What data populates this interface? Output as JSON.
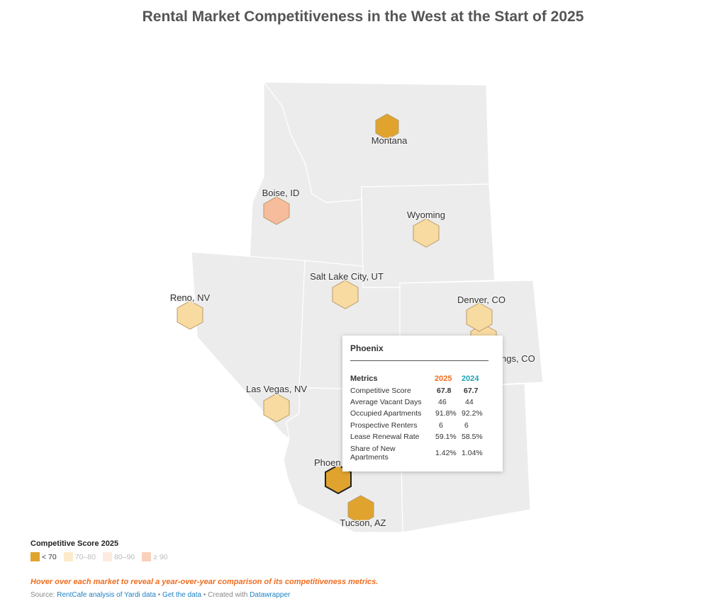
{
  "title": "Rental Market Competitiveness in the West at the Start of 2025",
  "colors": {
    "lt70": "#e0a42e",
    "r70_80": "#f8dba1",
    "r80_90": "#fce2d2",
    "ge90": "#f6bc9c",
    "hint": "#f06c1e",
    "col2025": "#f06c1e",
    "col2024": "#1aa3b3"
  },
  "markets": [
    {
      "id": "montana",
      "name": "Montana",
      "category": "lt70"
    },
    {
      "id": "boise",
      "name": "Boise, ID",
      "category": "ge90"
    },
    {
      "id": "wyoming",
      "name": "Wyoming",
      "category": "r70_80"
    },
    {
      "id": "salt-lake-city",
      "name": "Salt Lake City, UT",
      "category": "r70_80"
    },
    {
      "id": "reno",
      "name": "Reno, NV",
      "category": "r70_80"
    },
    {
      "id": "denver",
      "name": "Denver, CO",
      "category": "r70_80"
    },
    {
      "id": "colorado-springs",
      "name": "ngs, CO",
      "category": "r70_80"
    },
    {
      "id": "las-vegas",
      "name": "Las Vegas, NV",
      "category": "r70_80"
    },
    {
      "id": "phoenix",
      "name": "Phoen",
      "category": "lt70",
      "selected": true
    },
    {
      "id": "tucson",
      "name": "Tucson, AZ",
      "category": "lt70"
    }
  ],
  "tooltip": {
    "title": "Phoenix",
    "metrics_label": "Metrics",
    "col_2025": "2025",
    "col_2024": "2024",
    "rows": [
      {
        "label": "Competitive Score",
        "v2025": "67.8",
        "v2024": "67.7"
      },
      {
        "label": "Average Vacant Days",
        "v2025": "46",
        "v2024": "44"
      },
      {
        "label": "Occupied Apartments",
        "v2025": "91.8%",
        "v2024": "92.2%"
      },
      {
        "label": "Prospective Renters",
        "v2025": "6",
        "v2024": "6"
      },
      {
        "label": "Lease Renewal Rate",
        "v2025": "59.1%",
        "v2024": "58.5%"
      },
      {
        "label": "Share of New Apartments",
        "v2025": "1.42%",
        "v2024": "1.04%"
      }
    ]
  },
  "legend": {
    "title": "Competitive Score 2025",
    "items": [
      {
        "label": "< 70",
        "key": "lt70",
        "active": true
      },
      {
        "label": "70–80",
        "key": "r70_80",
        "active": false
      },
      {
        "label": "80–90",
        "key": "r80_90",
        "active": false
      },
      {
        "label": "≥ 90",
        "key": "ge90",
        "active": false
      }
    ]
  },
  "hint": "Hover over each market to reveal a year-over-year comparison of its competitiveness metrics.",
  "source": {
    "prefix": "Source:",
    "link1": "RentCafe analysis of Yardi data",
    "sep1": "•",
    "link2": "Get the data",
    "sep2": "• Created with",
    "link3": "Datawrapper"
  }
}
